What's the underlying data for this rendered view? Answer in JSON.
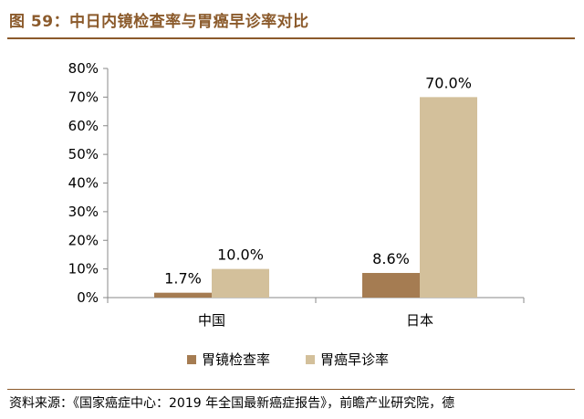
{
  "figure": {
    "title": "图 59：中日内镜检查率与胃癌早诊率对比",
    "source": "资料来源：《国家癌症中心：2019 年全国最新癌症报告》，前瞻产业研究院，德"
  },
  "colors": {
    "accent": "#8b5a2b",
    "series_1": "#a57c52",
    "series_2": "#d3c09b",
    "axis": "#888888"
  },
  "chart_data": {
    "type": "bar",
    "categories": [
      "中国",
      "日本"
    ],
    "series": [
      {
        "name": "胃镜检查率",
        "values": [
          1.7,
          8.6
        ],
        "labels": [
          "1.7%",
          "8.6%"
        ]
      },
      {
        "name": "胃癌早诊率",
        "values": [
          10.0,
          70.0
        ],
        "labels": [
          "10.0%",
          "70.0%"
        ]
      }
    ],
    "ylim": [
      0,
      80
    ],
    "yticks": [
      0,
      10,
      20,
      30,
      40,
      50,
      60,
      70,
      80
    ],
    "ytick_labels": [
      "0%",
      "10%",
      "20%",
      "30%",
      "40%",
      "50%",
      "60%",
      "70%",
      "80%"
    ],
    "legend_position": "bottom",
    "grid": false
  }
}
